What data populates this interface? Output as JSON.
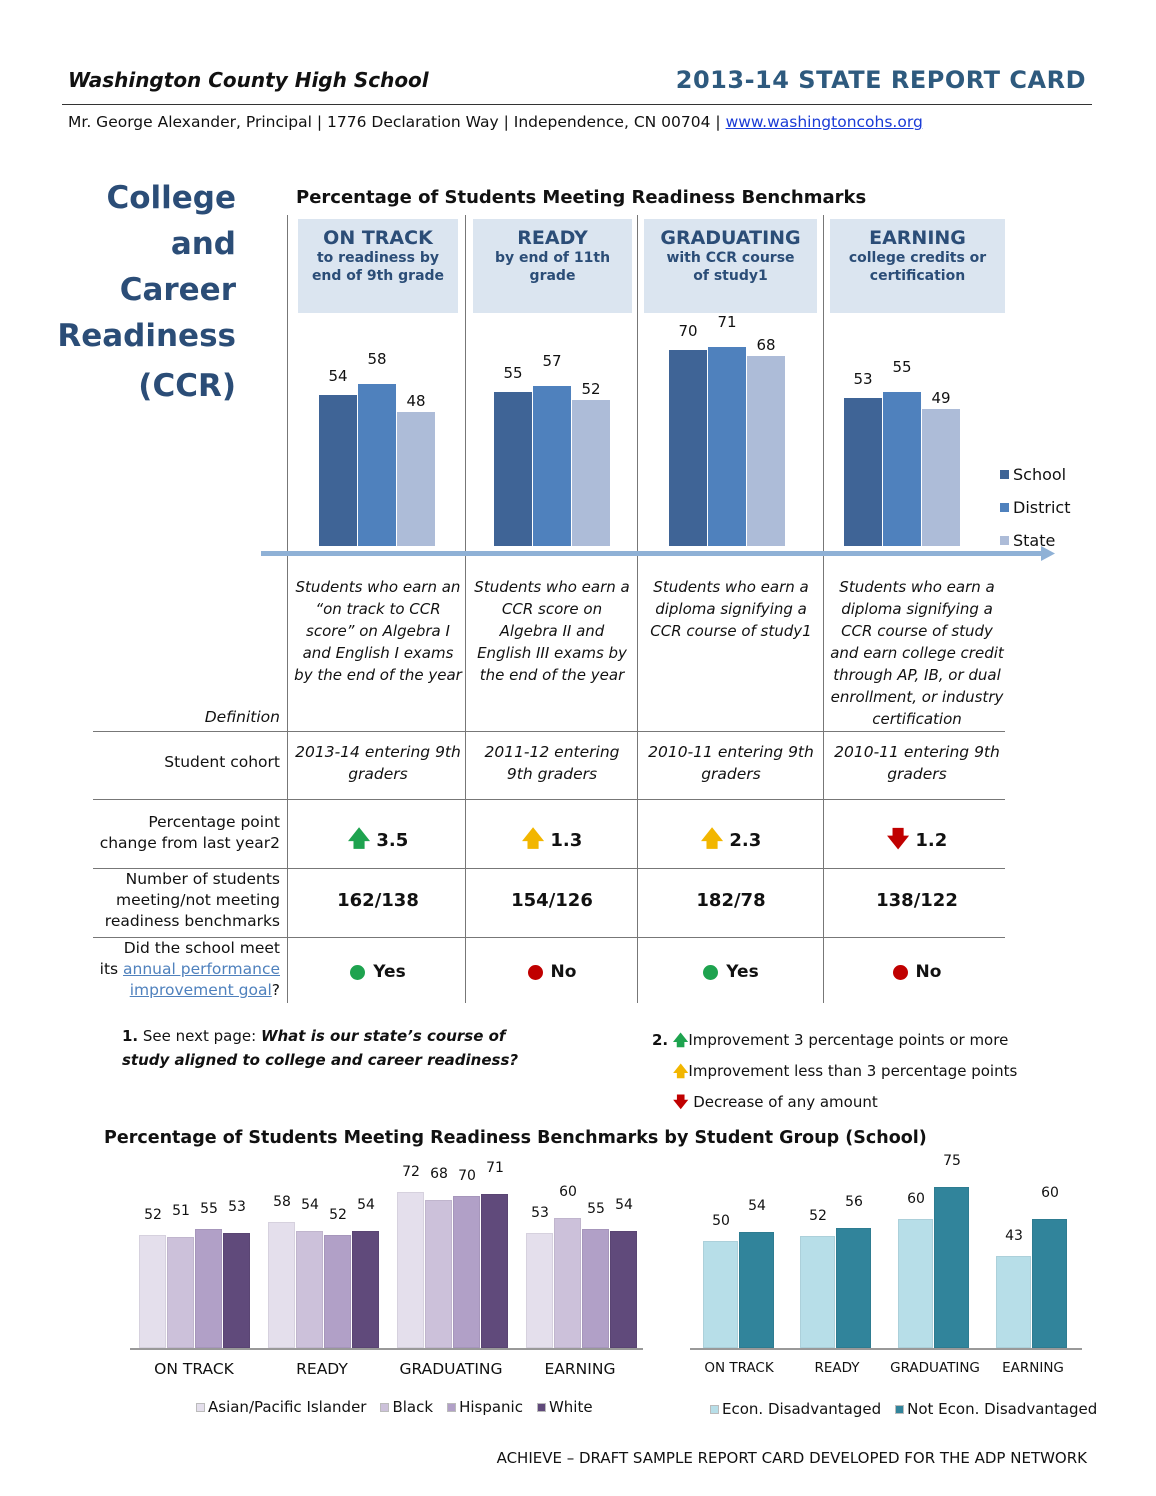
{
  "header": {
    "school": "Washington County High School",
    "report": "2013-14 STATE REPORT CARD",
    "address": "Mr. George Alexander, Principal | 1776 Declaration Way | Independence, CN 00704 | ",
    "website": "www.washingtoncohs.org"
  },
  "section_title": [
    "College",
    "and",
    "Career",
    "Readiness",
    "(CCR)"
  ],
  "colors": {
    "school": "#3f6496",
    "district": "#4f81bd",
    "state": "#adbcd8",
    "box": "#dbe5f0",
    "green": "#1ea34f",
    "yellow": "#f2b600",
    "red": "#c00000"
  },
  "chart_data": [
    {
      "type": "bar",
      "title": "Percentage of Students Meeting Readiness Benchmarks",
      "categories": [
        "ON TRACK",
        "READY",
        "GRADUATING",
        "EARNING"
      ],
      "series": [
        {
          "name": "School",
          "values": [
            54,
            55,
            70,
            53
          ]
        },
        {
          "name": "District",
          "values": [
            58,
            57,
            71,
            55
          ]
        },
        {
          "name": "State",
          "values": [
            48,
            52,
            68,
            49
          ]
        }
      ],
      "legend": "right"
    },
    {
      "type": "bar",
      "title": "Percentage of Students Meeting Readiness Benchmarks by Student Group (School)",
      "categories": [
        "ON TRACK",
        "READY",
        "GRADUATING",
        "EARNING"
      ],
      "series": [
        {
          "name": "Asian/Pacific Islander",
          "values": [
            52,
            58,
            72,
            53
          ],
          "color": "#e4dfec"
        },
        {
          "name": "Black",
          "values": [
            51,
            54,
            68,
            60
          ],
          "color": "#ccc1da"
        },
        {
          "name": "Hispanic",
          "values": [
            55,
            52,
            70,
            55
          ],
          "color": "#b1a0c7"
        },
        {
          "name": "White",
          "values": [
            53,
            54,
            71,
            54
          ],
          "color": "#604a7b"
        }
      ],
      "legend": "bottom"
    },
    {
      "type": "bar",
      "categories": [
        "ON TRACK",
        "READY",
        "GRADUATING",
        "EARNING"
      ],
      "series": [
        {
          "name": "Econ. Disadvantaged",
          "values": [
            50,
            52,
            60,
            43
          ],
          "color": "#b7dee8"
        },
        {
          "name": "Not Econ. Disadvantaged",
          "values": [
            54,
            56,
            75,
            60
          ],
          "color": "#31849b"
        }
      ],
      "legend": "bottom"
    }
  ],
  "columns": [
    {
      "title": "ON TRACK",
      "sub1": "to readiness by",
      "sub2": "end of 9th grade",
      "definition": [
        "Students who earn an",
        "“on track to CCR",
        "score” on Algebra I",
        "and English I exams",
        "by the end of the year"
      ],
      "cohort": [
        "2013-14 entering 9th",
        "graders"
      ],
      "change": "3.5",
      "change_icon": "arrow-up-green",
      "numbers": "162/138",
      "goal_met": "Yes",
      "goal_color": "green"
    },
    {
      "title": "READY",
      "sub1": "by end of 11th",
      "sub2": "grade",
      "definition": [
        "Students who earn a",
        "CCR score on",
        "Algebra II and",
        "English III exams by",
        "the end of the year"
      ],
      "cohort": [
        "2011-12 entering",
        "9th graders"
      ],
      "change": "1.3",
      "change_icon": "arrow-up-yellow",
      "numbers": "154/126",
      "goal_met": "No",
      "goal_color": "red"
    },
    {
      "title": "GRADUATING",
      "sub1": "with CCR course",
      "sub2": "of study1",
      "definition": [
        "Students who earn a",
        "diploma signifying a",
        "CCR course of study1"
      ],
      "cohort": [
        "2010-11 entering 9th",
        "graders"
      ],
      "change": "2.3",
      "change_icon": "arrow-up-yellow",
      "numbers": "182/78",
      "goal_met": "Yes",
      "goal_color": "green"
    },
    {
      "title": "EARNING",
      "sub1": "college credits or",
      "sub2": "certification",
      "definition": [
        "Students who earn a",
        "diploma signifying a",
        "CCR course of study",
        "and earn college credit",
        "through AP, IB, or dual",
        "enrollment, or industry",
        "certification"
      ],
      "cohort": [
        "2010-11 entering 9th",
        "graders"
      ],
      "change": "1.2",
      "change_icon": "arrow-down-red",
      "numbers": "138/122",
      "goal_met": "No",
      "goal_color": "red"
    }
  ],
  "rows": {
    "definition": "Definition",
    "cohort": "Student cohort",
    "change": [
      "Percentage point",
      "change from last year2"
    ],
    "numbers": [
      "Number of students",
      "meeting/not meeting",
      "readiness benchmarks"
    ],
    "goal1": "Did the school meet",
    "goal2": "its ",
    "goal_link1": "annual performance",
    "goal_link2": "improvement goal",
    "goal_q": "?"
  },
  "footnotes": {
    "n1": "1.",
    "n1_text": " See next page: ",
    "n1_bold": "What is our state’s course of study aligned to college and career readiness?",
    "n2": "2.",
    "legend": [
      "Improvement 3 percentage points or more",
      "Improvement less than 3 percentage points",
      "Decrease of any amount"
    ]
  },
  "footer": "ACHIEVE – DRAFT SAMPLE REPORT CARD DEVELOPED FOR THE ADP NETWORK"
}
